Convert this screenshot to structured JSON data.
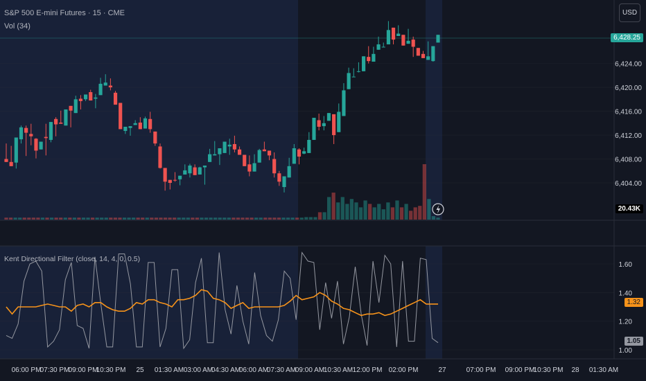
{
  "header": {
    "symbol_line": "S&P 500 E-mini Futures · 15 · CME",
    "volume_line": "Vol (34)"
  },
  "currency_button": "USD",
  "price_axis": {
    "ticks": [
      "6,428.25",
      "6,424.00",
      "6,420.00",
      "6,416.00",
      "6,412.00",
      "6,408.00",
      "6,404.00"
    ],
    "current_price": "6,428.25",
    "current_volume": "20.43K"
  },
  "indicator": {
    "title": "Kent Directional Filter (close, 14, 4, 0, 0.5)",
    "ticks": [
      "1.60",
      "1.40",
      "1.20",
      "1.00"
    ],
    "orange_value": "1.32",
    "gray_value": "1.05"
  },
  "time_axis": {
    "labels": [
      "06:00 PM",
      "07:30 PM",
      "09:00 PM",
      "10:30 PM",
      "25",
      "01:30 AM",
      "03:00 AM",
      "04:30 AM",
      "06:00 AM",
      "07:30 AM",
      "09:00 AM",
      "10:30 AM",
      "12:00 PM",
      "02:00 PM",
      "27",
      "07:00 PM",
      "09:00 PM",
      "10:30 PM",
      "28",
      "01:30 AM"
    ]
  },
  "colors": {
    "background": "#131722",
    "up": "#26a69a",
    "down": "#ef5350",
    "session_highlight": "#1e2a4a",
    "orange_line": "#f7931a",
    "gray_line": "#9598a1"
  },
  "chart_data": {
    "type": "candlestick",
    "symbol": "S&P 500 E-mini Futures",
    "interval": "15",
    "currency": "USD",
    "ylim": [
      6401,
      6432
    ],
    "candles": [
      [
        6408,
        6407.5,
        6407.8,
        6410.6
      ],
      [
        6407.5,
        6406.8,
        6407.8,
        6410.2
      ],
      [
        6407.4,
        6411.6,
        6410.1,
        6406.4
      ],
      [
        6411.3,
        6413.3,
        6413.6,
        6410.6
      ],
      [
        6413.2,
        6412.4,
        6413.6,
        6408.5
      ],
      [
        6412.2,
        6411.8,
        6410.3,
        6413.9
      ],
      [
        6411.4,
        6409.4,
        6408.1,
        6411.5
      ],
      [
        6409.6,
        6410.9,
        6410.9,
        6409.8
      ],
      [
        6411.7,
        6411.5,
        6408.6,
        6413.9
      ],
      [
        6411.2,
        6414.2,
        6410.8,
        6412.6
      ],
      [
        6414.7,
        6413.8,
        6415,
        6411.8
      ],
      [
        6414.1,
        6413.9,
        6416.1,
        6414.9
      ],
      [
        6413.6,
        6416.3,
        6414.5,
        6415.5
      ],
      [
        6416.9,
        6416.1,
        6413.3,
        6415.4
      ],
      [
        6415.7,
        6418,
        6418.6,
        6416.5
      ],
      [
        6418.1,
        6417.7,
        6416.3,
        6418.7
      ],
      [
        6418,
        6418.8,
        6418.3,
        6417.7
      ],
      [
        6419.2,
        6417.8,
        6419.6,
        6419.2
      ],
      [
        6418.1,
        6418.3,
        6418.9,
        6416.5
      ],
      [
        6418.7,
        6420.6,
        6419.3,
        6421.6
      ],
      [
        6420.3,
        6420.8,
        6421,
        6422.2
      ],
      [
        6420.3,
        6420,
        6419.5,
        6421.5
      ],
      [
        6419.1,
        6417.1,
        6419.2,
        6419.4
      ],
      [
        6417.4,
        6413,
        6413.3,
        6415.5
      ],
      [
        6412.7,
        6413.4,
        6413.2,
        6412.2
      ],
      [
        6413.2,
        6413.5,
        6412.5,
        6411.9
      ],
      [
        6413.7,
        6414,
        6414.1,
        6414.5
      ],
      [
        6414.1,
        6413,
        6413.2,
        6415
      ],
      [
        6413.1,
        6414.8,
        6415.1,
        6414.6
      ],
      [
        6414.7,
        6413,
        6415.9,
        6412.4
      ],
      [
        6412.6,
        6410.6,
        6410.2,
        6412.1
      ],
      [
        6410.1,
        6406.5,
        6406.4,
        6410.6
      ],
      [
        6406.5,
        6404.2,
        6405.6,
        6402.7
      ],
      [
        6404.5,
        6404,
        6402.9,
        6403.6
      ],
      [
        6404.5,
        6404.4,
        6404.2,
        6405.8
      ],
      [
        6404.6,
        6405.2,
        6404.1,
        6403.6
      ],
      [
        6405.4,
        6406.1,
        6406.4,
        6407.1
      ],
      [
        6405.6,
        6406.9,
        6404.9,
        6407.2
      ],
      [
        6406.6,
        6405.3,
        6407.1,
        6405.4
      ],
      [
        6405.4,
        6406.6,
        6406.3,
        6406.7
      ],
      [
        6406.6,
        6406.9,
        6403.7,
        6405.6
      ],
      [
        6407.5,
        6408.8,
        6408,
        6409.7
      ],
      [
        6408.6,
        6408.8,
        6409.6,
        6411
      ],
      [
        6408.8,
        6409.8,
        6407,
        6409.1
      ],
      [
        6409,
        6410.9,
        6409,
        6409.7
      ],
      [
        6410.1,
        6410.4,
        6408.7,
        6411.4
      ],
      [
        6410.5,
        6409.6,
        6409.1,
        6411.9
      ],
      [
        6409.6,
        6408.7,
        6409,
        6410.1
      ],
      [
        6408.7,
        6406.8,
        6408.4,
        6407.6
      ],
      [
        6407.1,
        6405.9,
        6405.1,
        6408.6
      ],
      [
        6405.9,
        6407.3,
        6406.8,
        6408.8
      ],
      [
        6407.4,
        6409.5,
        6409.2,
        6409.7
      ],
      [
        6409.6,
        6409.3,
        6409.5,
        6410.9
      ],
      [
        6409.4,
        6408.6,
        6407.8,
        6409
      ],
      [
        6408,
        6405.6,
        6404.9,
        6409.1
      ],
      [
        6405.6,
        6404.2,
        6406,
        6403.5
      ],
      [
        6403.3,
        6405.1,
        6402.4,
        6405.1
      ],
      [
        6404.9,
        6406.8,
        6407.6,
        6408.2
      ],
      [
        6407.2,
        6409.8,
        6410.5,
        6409.6
      ],
      [
        6409.6,
        6408.4,
        6407.1,
        6409.8
      ],
      [
        6408.9,
        6409.3,
        6409.9,
        6408.8
      ],
      [
        6409,
        6411.2,
        6412.5,
        6411.6
      ],
      [
        6411.2,
        6414.9,
        6414.7,
        6413.6
      ],
      [
        6414.5,
        6413.4,
        6415.6,
        6412.8
      ],
      [
        6413.5,
        6414,
        6412.8,
        6415.2
      ],
      [
        6414.4,
        6415.7,
        6414.5,
        6415.4
      ],
      [
        6415.5,
        6412,
        6413.1,
        6410.5
      ],
      [
        6412.5,
        6415.9,
        6414.6,
        6417.3
      ],
      [
        6415.2,
        6419.5,
        6418.1,
        6420.7
      ],
      [
        6419.7,
        6422.4,
        6422.3,
        6423.3
      ],
      [
        6421.8,
        6421.8,
        6423.2,
        6422
      ],
      [
        6422.6,
        6422.7,
        6422.5,
        6424.2
      ],
      [
        6422.7,
        6425.2,
        6423.8,
        6424.4
      ],
      [
        6425.1,
        6424.4,
        6424,
        6426.9
      ],
      [
        6424.3,
        6425.6,
        6426.1,
        6426.8
      ],
      [
        6426.3,
        6427.2,
        6428.5,
        6427.6
      ],
      [
        6426.8,
        6426.8,
        6427,
        6427.5
      ],
      [
        6427.2,
        6429.6,
        6428.8,
        6431.1
      ],
      [
        6430,
        6428,
        6427.2,
        6428.9
      ],
      [
        6428.6,
        6429,
        6428.8,
        6430.4
      ],
      [
        6428.8,
        6427,
        6428,
        6428.8
      ],
      [
        6427.3,
        6427.8,
        6428.4,
        6429.8
      ],
      [
        6428,
        6426.8,
        6428.5,
        6425.1
      ],
      [
        6426.6,
        6425.3,
        6426.6,
        6426.5
      ],
      [
        6425.6,
        6424.9,
        6425.6,
        6426.1
      ],
      [
        6424.6,
        6425.2,
        6426.8,
        6427.7
      ],
      [
        6424.4,
        6426.9,
        6425.2,
        6424.3
      ],
      [
        6427.5,
        6428.8,
        6428.4,
        6428.5
      ]
    ],
    "volume": [
      0.4,
      0.4,
      0.4,
      0.4,
      0.4,
      0.4,
      0.4,
      0.4,
      0.4,
      0.4,
      0.4,
      0.4,
      0.4,
      0.4,
      0.4,
      0.4,
      0.4,
      0.4,
      0.4,
      0.4,
      0.4,
      0.4,
      0.4,
      0.4,
      0.4,
      0.4,
      0.4,
      0.4,
      0.4,
      0.4,
      0.4,
      0.4,
      0.4,
      0.4,
      0.4,
      0.4,
      0.4,
      0.4,
      0.4,
      0.4,
      0.4,
      0.4,
      0.4,
      0.4,
      0.4,
      0.4,
      0.4,
      0.4,
      0.4,
      0.4,
      0.4,
      0.4,
      0.4,
      0.4,
      0.4,
      0.4,
      0.4,
      0.4,
      0.4,
      0.4,
      0.4,
      0.4,
      0.4,
      0.4,
      0.4,
      0.4,
      0.5,
      0.5,
      0.5,
      1.5,
      1.5,
      4.6,
      5.5,
      3.5,
      4.6,
      3.2,
      4.2,
      3.5,
      2.5,
      3.9,
      3.2,
      2.5,
      3.2,
      2.1,
      3.5,
      2.5,
      3.9,
      2.5,
      3.2,
      1.8,
      2.5,
      2.8,
      11.3,
      4.2,
      0.7,
      0.4
    ],
    "current_volume": "20.43K",
    "indicator": {
      "name": "Kent Directional Filter (close, 14, 4, 0, 0.5)",
      "ylim": [
        1.0,
        1.7
      ],
      "orange": [
        1.3,
        1.25,
        1.3,
        1.3,
        1.3,
        1.3,
        1.31,
        1.32,
        1.31,
        1.3,
        1.3,
        1.27,
        1.31,
        1.32,
        1.3,
        1.33,
        1.33,
        1.3,
        1.28,
        1.27,
        1.27,
        1.29,
        1.33,
        1.32,
        1.35,
        1.35,
        1.33,
        1.32,
        1.3,
        1.35,
        1.35,
        1.36,
        1.38,
        1.42,
        1.41,
        1.36,
        1.35,
        1.33,
        1.29,
        1.31,
        1.33,
        1.29,
        1.3,
        1.3,
        1.3,
        1.3,
        1.3,
        1.31,
        1.34,
        1.38,
        1.35,
        1.36,
        1.37,
        1.4,
        1.38,
        1.34,
        1.32,
        1.29,
        1.28,
        1.26,
        1.24,
        1.25,
        1.25,
        1.26,
        1.24,
        1.25,
        1.27,
        1.29,
        1.31,
        1.33,
        1.35,
        1.32,
        1.32,
        1.32
      ],
      "gray": [
        1.1,
        1.08,
        1.18,
        1.48,
        1.6,
        1.62,
        1.55,
        1.02,
        1.06,
        1.14,
        1.49,
        1.61,
        1.17,
        1.15,
        1.01,
        1.65,
        1.32,
        1.02,
        1.02,
        1.67,
        1.67,
        1.46,
        1.02,
        1.02,
        1.61,
        1.61,
        1.02,
        1.15,
        1.56,
        1.56,
        1.01,
        1.07,
        1.47,
        1.64,
        1.05,
        1.05,
        1.68,
        1.28,
        1.11,
        1.45,
        1.2,
        1.04,
        1.54,
        1.24,
        1.1,
        1.06,
        1.21,
        1.55,
        1.5,
        1.21,
        1.68,
        1.62,
        1.61,
        1.14,
        1.47,
        1.22,
        1.48,
        1.04,
        1.23,
        1.58,
        1.25,
        1.03,
        1.62,
        1.33,
        1.66,
        1.6,
        1.02,
        1.62,
        1.06,
        1.06,
        1.64,
        1.63,
        1.08,
        1.05
      ],
      "orange_value": "1.32",
      "gray_value": "1.05"
    }
  }
}
